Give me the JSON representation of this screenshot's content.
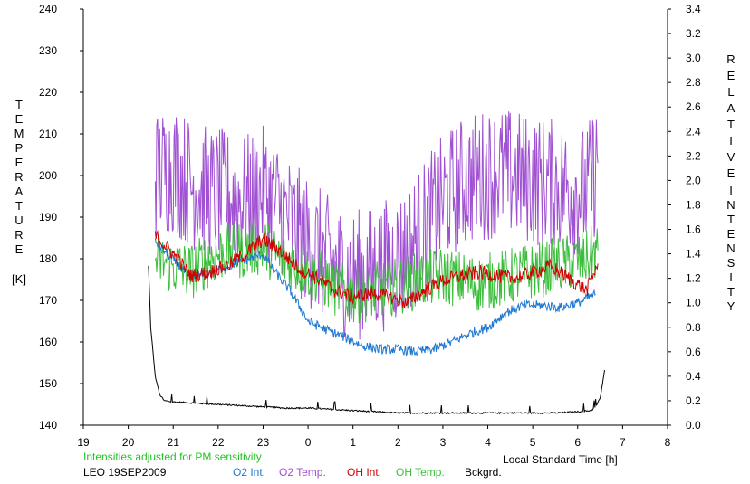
{
  "chart_data": {
    "type": "line",
    "left_axis": {
      "label_letters": [
        "T",
        "E",
        "M",
        "P",
        "E",
        "R",
        "A",
        "T",
        "U",
        "R",
        "E"
      ],
      "unit": "[K]",
      "ylim": [
        140,
        240
      ],
      "ticks": [
        "140",
        "150",
        "160",
        "170",
        "180",
        "190",
        "200",
        "210",
        "220",
        "230",
        "240"
      ]
    },
    "right_axis": {
      "label_letters_1": [
        "R",
        "E",
        "L",
        "A",
        "T",
        "I",
        "V",
        "E"
      ],
      "label_letters_2": [
        "I",
        "N",
        "T",
        "E",
        "N",
        "S",
        "I",
        "T",
        "Y"
      ],
      "ylim": [
        0.0,
        3.4
      ],
      "ticks": [
        "0.0",
        "0.2",
        "0.4",
        "0.6",
        "0.8",
        "1.0",
        "1.2",
        "1.4",
        "1.6",
        "1.8",
        "2.0",
        "2.2",
        "2.4",
        "2.6",
        "2.8",
        "3.0",
        "3.2",
        "3.4"
      ]
    },
    "x_axis": {
      "label": "Local Standard Time [h]",
      "tick_labels": [
        "19",
        "20",
        "21",
        "22",
        "23",
        "0",
        "1",
        "2",
        "3",
        "4",
        "5",
        "6",
        "7",
        "8"
      ],
      "xlim": [
        19,
        32
      ]
    },
    "note": "Intensities adjusted for PM sensitivity",
    "station": "LEO 19SEP2009",
    "grid": false,
    "series": [
      {
        "name": "O2 Int.",
        "axis": "right",
        "color": "#1e78d2",
        "x": [
          20.6,
          21.0,
          21.4,
          21.8,
          22.2,
          22.6,
          23.0,
          23.2,
          23.6,
          24.0,
          24.4,
          24.8,
          25.2,
          25.6,
          26.0,
          26.4,
          26.8,
          27.2,
          27.6,
          28.0,
          28.4,
          28.8,
          29.2,
          29.6,
          30.0,
          30.4
        ],
        "values": [
          1.5,
          1.35,
          1.2,
          1.25,
          1.3,
          1.35,
          1.4,
          1.28,
          1.1,
          0.85,
          0.78,
          0.72,
          0.65,
          0.62,
          0.62,
          0.6,
          0.62,
          0.68,
          0.75,
          0.8,
          0.92,
          0.98,
          0.98,
          0.96,
          1.0,
          1.07
        ]
      },
      {
        "name": "O2 Temp.",
        "axis": "left",
        "color": "#a050d2",
        "x": [
          20.6,
          21.0,
          21.4,
          21.8,
          22.2,
          22.6,
          23.0,
          23.4,
          23.8,
          24.2,
          24.6,
          25.0,
          25.4,
          25.8,
          26.2,
          26.6,
          27.0,
          27.4,
          27.8,
          28.2,
          28.6,
          29.0,
          29.4,
          29.8,
          30.2,
          30.45
        ],
        "values": [
          200,
          202,
          198,
          196,
          195,
          194,
          196,
          192,
          186,
          182,
          178,
          176,
          177,
          179,
          182,
          188,
          194,
          198,
          200,
          201,
          200,
          199,
          198,
          197,
          196,
          203
        ]
      },
      {
        "name": "OH Int.",
        "axis": "right",
        "color": "#d20000",
        "x": [
          20.6,
          21.0,
          21.4,
          21.8,
          22.2,
          22.6,
          23.0,
          23.4,
          23.8,
          24.2,
          24.6,
          25.0,
          25.4,
          25.8,
          26.2,
          26.6,
          27.0,
          27.4,
          27.8,
          28.2,
          28.6,
          29.0,
          29.4,
          29.8,
          30.2,
          30.45
        ],
        "values": [
          1.55,
          1.4,
          1.22,
          1.25,
          1.3,
          1.4,
          1.52,
          1.42,
          1.28,
          1.2,
          1.1,
          1.05,
          1.08,
          1.05,
          1.0,
          1.1,
          1.18,
          1.22,
          1.25,
          1.22,
          1.2,
          1.25,
          1.3,
          1.2,
          1.1,
          1.32
        ]
      },
      {
        "name": "OH Temp.",
        "axis": "left",
        "color": "#3cbe3c",
        "x": [
          20.6,
          21.0,
          21.4,
          21.8,
          22.2,
          22.6,
          23.0,
          23.4,
          23.8,
          24.2,
          24.6,
          25.0,
          25.4,
          25.8,
          26.2,
          26.6,
          27.0,
          27.4,
          27.8,
          28.2,
          28.6,
          29.0,
          29.4,
          29.8,
          30.2,
          30.45
        ],
        "values": [
          180,
          178,
          177,
          180,
          182,
          182,
          183,
          180,
          178,
          176,
          173,
          171,
          172,
          173,
          174,
          175,
          176,
          175,
          174,
          175,
          176,
          177,
          178,
          179,
          180,
          182
        ]
      },
      {
        "name": "Bckgrd.",
        "axis": "right",
        "color": "#000000",
        "x": [
          20.45,
          20.5,
          20.6,
          20.7,
          20.8,
          21.0,
          21.5,
          22.0,
          22.5,
          23.0,
          23.5,
          24.0,
          24.5,
          25.0,
          25.5,
          26.0,
          26.5,
          27.0,
          27.5,
          28.0,
          28.5,
          29.0,
          29.5,
          30.0,
          30.3,
          30.4,
          30.5,
          30.6
        ],
        "values": [
          1.3,
          0.8,
          0.4,
          0.25,
          0.2,
          0.19,
          0.18,
          0.17,
          0.16,
          0.15,
          0.14,
          0.14,
          0.13,
          0.12,
          0.11,
          0.1,
          0.1,
          0.1,
          0.1,
          0.1,
          0.1,
          0.1,
          0.1,
          0.11,
          0.12,
          0.15,
          0.22,
          0.45
        ]
      }
    ]
  }
}
